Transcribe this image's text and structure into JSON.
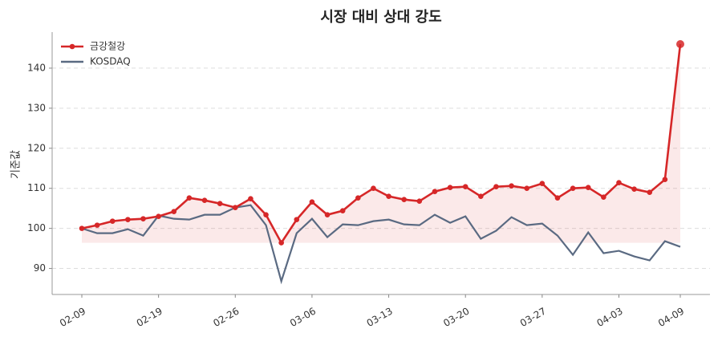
{
  "chart_data": {
    "type": "line",
    "title": "시장 대비 상대 강도",
    "y_label": "기준값",
    "categories": [
      "02-09",
      null,
      null,
      null,
      null,
      "02-19",
      null,
      null,
      null,
      null,
      "02-26",
      null,
      null,
      null,
      null,
      "03-06",
      null,
      null,
      null,
      null,
      "03-13",
      null,
      null,
      null,
      null,
      "03-20",
      null,
      null,
      null,
      null,
      "03-27",
      null,
      null,
      null,
      null,
      "04-03",
      null,
      null,
      null,
      "04-09"
    ],
    "series": [
      {
        "name": "금강철강",
        "color": "#d62728",
        "markers": true,
        "fill": true,
        "values": [
          100,
          100.8,
          101.8,
          102.2,
          102.4,
          103.0,
          104.2,
          107.6,
          107.0,
          106.2,
          105.2,
          107.4,
          103.4,
          96.4,
          102.2,
          106.6,
          103.4,
          104.4,
          107.6,
          110.0,
          108.0,
          107.2,
          106.8,
          109.2,
          110.2,
          110.4,
          108.0,
          110.4,
          110.6,
          110.0,
          111.2,
          107.6,
          110.0,
          110.2,
          107.8,
          111.4,
          109.8,
          109.0,
          112.2,
          146.0
        ]
      },
      {
        "name": "KOSDAQ",
        "color": "#5a6a82",
        "markers": false,
        "fill": false,
        "values": [
          100,
          98.8,
          98.8,
          99.8,
          98.2,
          103.2,
          102.4,
          102.2,
          103.4,
          103.4,
          105.2,
          105.8,
          100.8,
          86.8,
          98.8,
          102.4,
          97.8,
          101.0,
          100.8,
          101.8,
          102.2,
          101.0,
          100.8,
          103.4,
          101.4,
          103.0,
          97.4,
          99.4,
          102.8,
          100.8,
          101.2,
          98.2,
          93.4,
          99.0,
          93.8,
          94.4,
          93.0,
          92.0,
          96.8,
          95.4
        ]
      }
    ],
    "ylim": [
      83.5,
      149
    ],
    "yticks": [
      90,
      100,
      110,
      120,
      130,
      140
    ],
    "grid": true,
    "legend": "upper left"
  }
}
